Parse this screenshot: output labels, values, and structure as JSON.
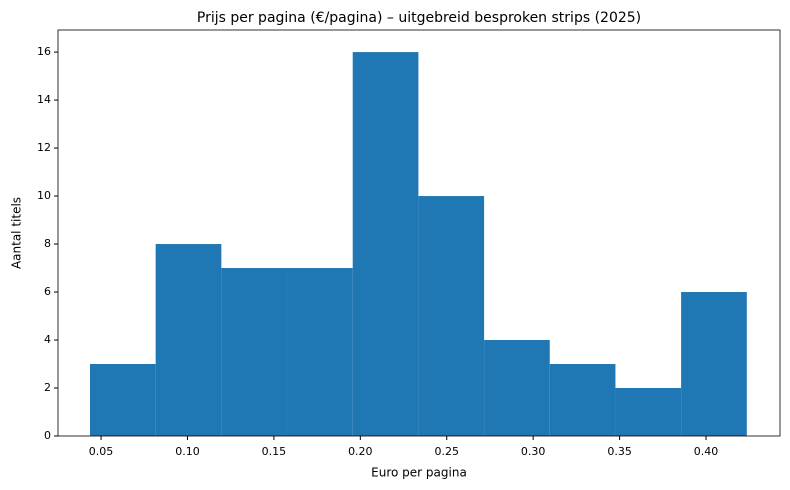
{
  "chart_data": {
    "type": "histogram",
    "title": "Prijs per pagina (€/pagina) – uitgebreid besproken strips (2025)",
    "x_label": "Euro per pagina",
    "y_label": "Aantal titels",
    "bins": [
      0.0436,
      0.0816,
      0.1196,
      0.1576,
      0.1956,
      0.2336,
      0.2716,
      0.3096,
      0.3476,
      0.3856,
      0.4236
    ],
    "values": [
      3,
      8,
      7,
      7,
      16,
      10,
      4,
      3,
      2,
      6
    ],
    "color": "#1f77b4",
    "xlim": [
      0.0251,
      0.4428
    ],
    "ylim": [
      0,
      16.92
    ],
    "xticks": [
      0.05,
      {
        "value": 0.1,
        "label": "0.10"
      },
      0.15,
      {
        "value": 0.2,
        "label": "0.20"
      },
      0.25,
      {
        "value": 0.3,
        "label": "0.30"
      },
      0.35,
      {
        "value": 0.4,
        "label": "0.40"
      }
    ],
    "yticks": [
      0,
      2,
      4,
      6,
      8,
      10,
      12,
      14,
      16
    ]
  }
}
